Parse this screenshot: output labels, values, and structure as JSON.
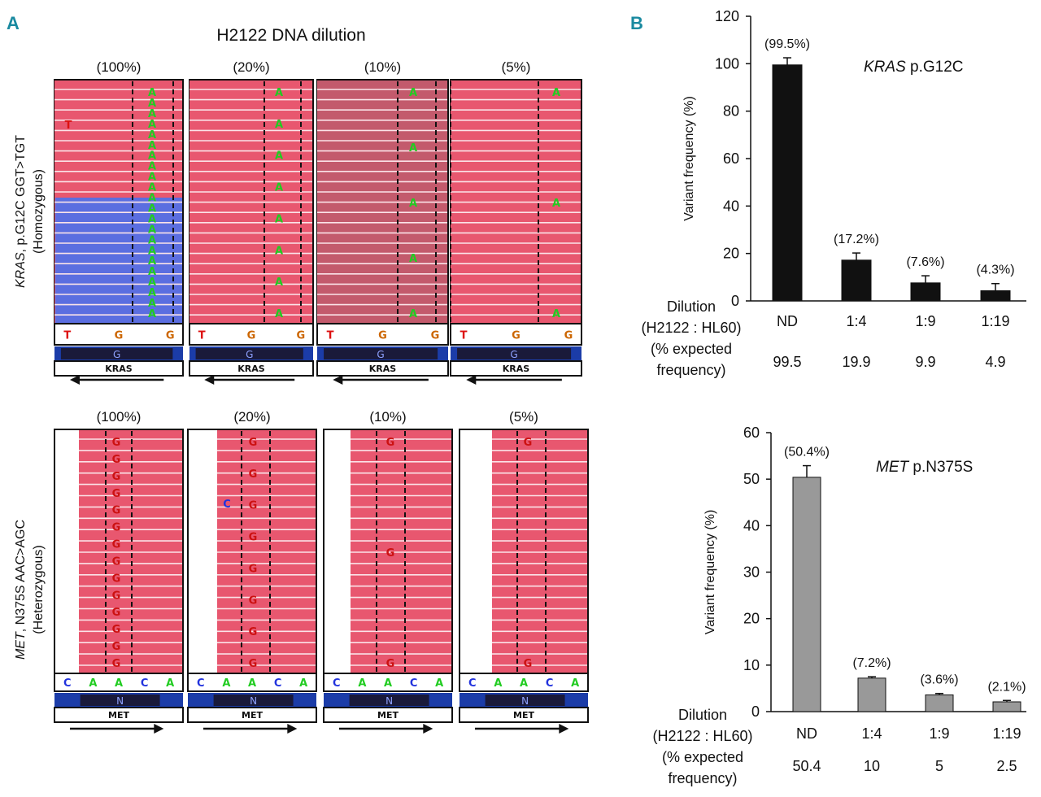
{
  "panels": {
    "a": "A",
    "b": "B"
  },
  "igv": {
    "title": "H2122 DNA dilution",
    "conditions": [
      "(100%)",
      "(20%)",
      "(10%)",
      "(5%)"
    ],
    "top": {
      "ylabel_gene": "KRAS",
      "ylabel_rest": ", p.G12C GGT>TGT",
      "ylabel_zyg": "(Homozygous)",
      "ref_bases": [
        "T",
        "G",
        "G"
      ],
      "amino": "G",
      "gene": "KRAS",
      "alt_base": "A",
      "other_base": "T",
      "alt_counts": [
        22,
        8,
        5,
        3
      ]
    },
    "bottom": {
      "ylabel_gene": "MET",
      "ylabel_rest": ", N375S AAC>AGC",
      "ylabel_zyg": "(Heterozygous)",
      "ref_bases": [
        "C",
        "A",
        "A",
        "C",
        "A"
      ],
      "amino": "N",
      "gene": "MET",
      "alt_base": "G",
      "other_base": "C",
      "alt_counts": [
        14,
        8,
        3,
        2
      ]
    },
    "colors": {
      "read_red": "#e8576f",
      "read_dim": "#c35a6c",
      "read_blue": "#5b6ee0",
      "ref_bar": "#1b3ca8",
      "amino_box": "#1a1a3a",
      "base_A": "#22cc22",
      "base_C": "#2233dd",
      "base_G": "#cc6600",
      "base_T": "#dd1111",
      "alt_G": "#cc1111"
    }
  },
  "chart_data": [
    {
      "type": "bar",
      "title": "KRAS p.G12C",
      "title_gene": "KRAS",
      "title_rest": " p.G12C",
      "ylabel": "Variant frequency (%)",
      "xlabel": "Dilution (H2122 : HL60)",
      "row_labels": [
        "Dilution",
        "(H2122 : HL60)",
        "(% expected",
        "frequency)"
      ],
      "categories": [
        "ND",
        "1:4",
        "1:9",
        "1:19"
      ],
      "values": [
        99.5,
        17.2,
        7.6,
        4.3
      ],
      "errors": [
        3,
        3,
        3,
        3
      ],
      "data_labels": [
        "(99.5%)",
        "(17.2%)",
        "(7.6%)",
        "(4.3%)"
      ],
      "expected": [
        "99.5",
        "19.9",
        "9.9",
        "4.9"
      ],
      "ylim": [
        0,
        120
      ],
      "yticks": [
        0,
        20,
        40,
        60,
        80,
        100,
        120
      ],
      "color": "#111111"
    },
    {
      "type": "bar",
      "title": "MET p.N375S",
      "title_gene": "MET",
      "title_rest": " p.N375S",
      "ylabel": "Variant frequency (%)",
      "xlabel": "Dilution (H2122 : HL60)",
      "row_labels": [
        "Dilution",
        "(H2122 : HL60)",
        "(% expected",
        "frequency)"
      ],
      "categories": [
        "ND",
        "1:4",
        "1:9",
        "1:19"
      ],
      "values": [
        50.4,
        7.2,
        3.6,
        2.1
      ],
      "errors": [
        2.5,
        0.3,
        0.3,
        0.3
      ],
      "data_labels": [
        "(50.4%)",
        "(7.2%)",
        "(3.6%)",
        "(2.1%)"
      ],
      "expected": [
        "50.4",
        "10",
        "5",
        "2.5"
      ],
      "ylim": [
        0,
        60
      ],
      "yticks": [
        0,
        10,
        20,
        30,
        40,
        50,
        60
      ],
      "color": "#999999"
    }
  ]
}
